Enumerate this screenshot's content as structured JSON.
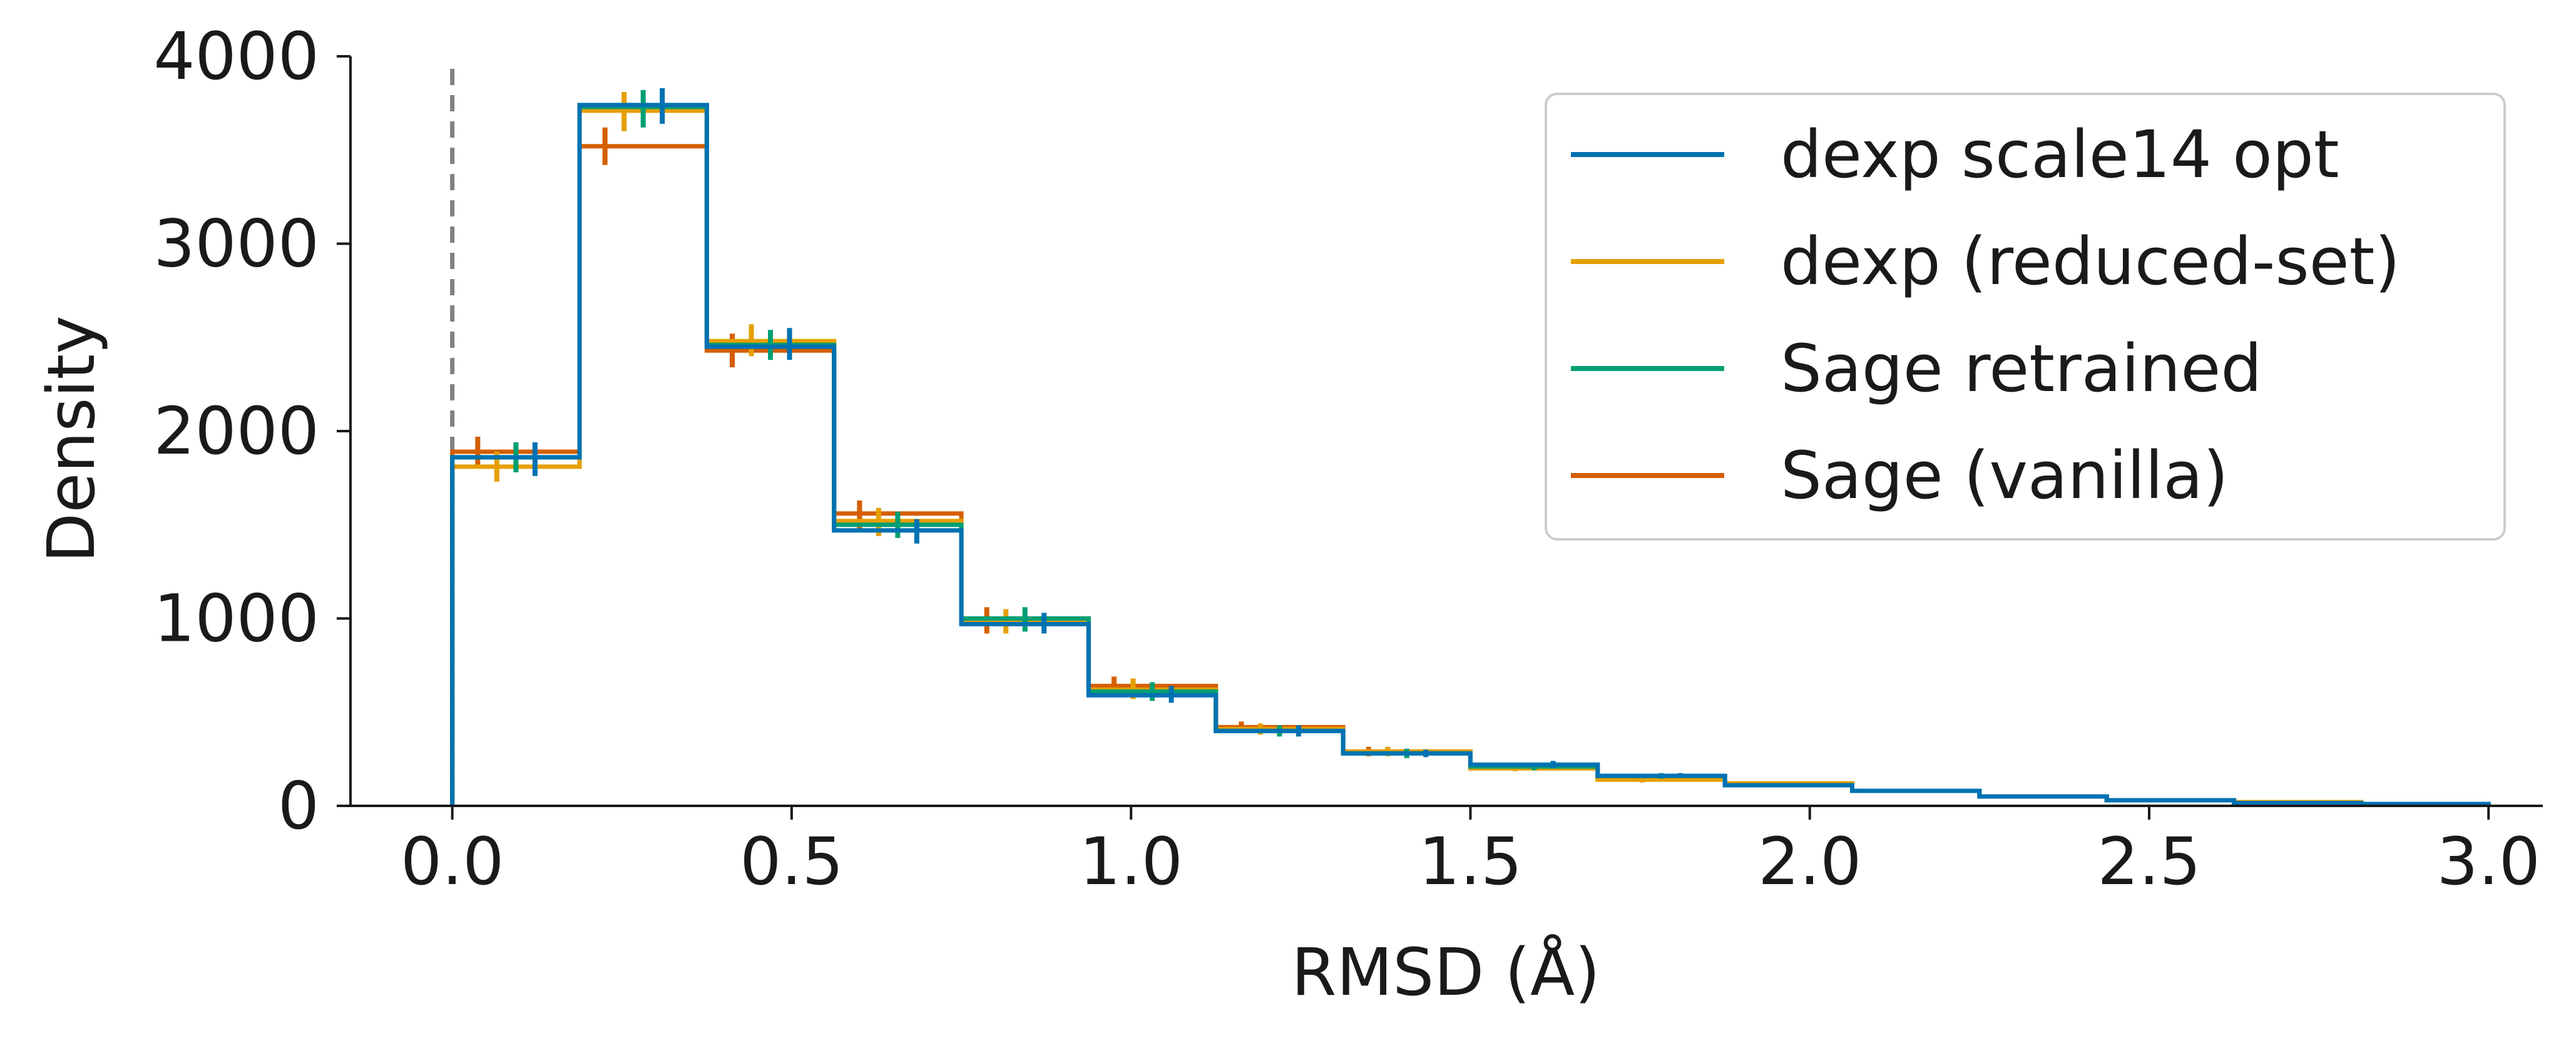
{
  "chart_data": {
    "type": "line",
    "drawstyle": "steps-post",
    "xlabel": "RMSD (Å)",
    "ylabel": "Density",
    "xlim": [
      -0.15,
      3.08
    ],
    "ylim": [
      0,
      4000
    ],
    "x_ticks": [
      0.0,
      0.5,
      1.0,
      1.5,
      2.0,
      2.5,
      3.0
    ],
    "x_tick_labels": [
      "0.0",
      "0.5",
      "1.0",
      "1.5",
      "2.0",
      "2.5",
      "3.0"
    ],
    "y_ticks": [
      0,
      1000,
      2000,
      3000,
      4000
    ],
    "y_tick_labels": [
      "0",
      "1000",
      "2000",
      "3000",
      "4000"
    ],
    "reference_line": {
      "x": 0.0,
      "style": "dashed",
      "color": "#808080"
    },
    "grid": false,
    "legend_position": "top-right",
    "bin_edges": [
      0.0,
      0.1875,
      0.375,
      0.5625,
      0.75,
      0.9375,
      1.125,
      1.3125,
      1.5,
      1.6875,
      1.875,
      2.0625,
      2.25,
      2.4375,
      2.625,
      2.8125,
      3.0
    ],
    "series": [
      {
        "name": "dexp scale14 opt",
        "color": "#0072b2",
        "values": [
          1860,
          3740,
          2450,
          1470,
          970,
          590,
          400,
          280,
          220,
          160,
          110,
          80,
          50,
          30,
          15,
          10
        ],
        "errors": [
          [
            1760,
            1940
          ],
          [
            3640,
            3830
          ],
          [
            2380,
            2550
          ],
          [
            1400,
            1530
          ],
          [
            920,
            1030
          ],
          [
            550,
            640
          ],
          [
            370,
            430
          ],
          [
            260,
            300
          ],
          [
            200,
            240
          ],
          [
            150,
            175
          ],
          [
            100,
            120
          ],
          [
            70,
            90
          ],
          [
            40,
            60
          ],
          [
            25,
            40
          ],
          [
            10,
            20
          ],
          [
            5,
            15
          ]
        ]
      },
      {
        "name": "dexp (reduced-set)",
        "color": "#e69f00",
        "values": [
          1810,
          3710,
          2480,
          1520,
          990,
          620,
          410,
          290,
          200,
          140,
          120,
          80,
          50,
          30,
          20,
          10
        ],
        "errors": [
          [
            1730,
            1890
          ],
          [
            3600,
            3810
          ],
          [
            2400,
            2570
          ],
          [
            1440,
            1590
          ],
          [
            920,
            1050
          ],
          [
            570,
            680
          ],
          [
            380,
            440
          ],
          [
            265,
            315
          ],
          [
            185,
            215
          ],
          [
            125,
            155
          ],
          [
            110,
            130
          ],
          [
            70,
            90
          ],
          [
            40,
            60
          ],
          [
            25,
            35
          ],
          [
            15,
            25
          ],
          [
            5,
            15
          ]
        ]
      },
      {
        "name": "Sage retrained",
        "color": "#009e73",
        "values": [
          1860,
          3730,
          2460,
          1500,
          1000,
          610,
          400,
          280,
          210,
          160,
          110,
          80,
          50,
          30,
          15,
          10
        ],
        "errors": [
          [
            1780,
            1940
          ],
          [
            3620,
            3820
          ],
          [
            2380,
            2540
          ],
          [
            1430,
            1570
          ],
          [
            930,
            1060
          ],
          [
            560,
            660
          ],
          [
            370,
            430
          ],
          [
            255,
            305
          ],
          [
            190,
            230
          ],
          [
            145,
            175
          ],
          [
            100,
            120
          ],
          [
            70,
            90
          ],
          [
            40,
            60
          ],
          [
            25,
            35
          ],
          [
            10,
            20
          ],
          [
            5,
            15
          ]
        ]
      },
      {
        "name": "Sage (vanilla)",
        "color": "#d55e00",
        "values": [
          1890,
          3520,
          2430,
          1560,
          990,
          640,
          420,
          290,
          210,
          150,
          120,
          80,
          50,
          30,
          20,
          10
        ],
        "errors": [
          [
            1800,
            1970
          ],
          [
            3420,
            3620
          ],
          [
            2340,
            2520
          ],
          [
            1480,
            1630
          ],
          [
            920,
            1060
          ],
          [
            590,
            690
          ],
          [
            390,
            450
          ],
          [
            265,
            315
          ],
          [
            190,
            230
          ],
          [
            135,
            165
          ],
          [
            110,
            130
          ],
          [
            70,
            90
          ],
          [
            40,
            60
          ],
          [
            25,
            35
          ],
          [
            15,
            25
          ],
          [
            5,
            15
          ]
        ]
      }
    ]
  }
}
